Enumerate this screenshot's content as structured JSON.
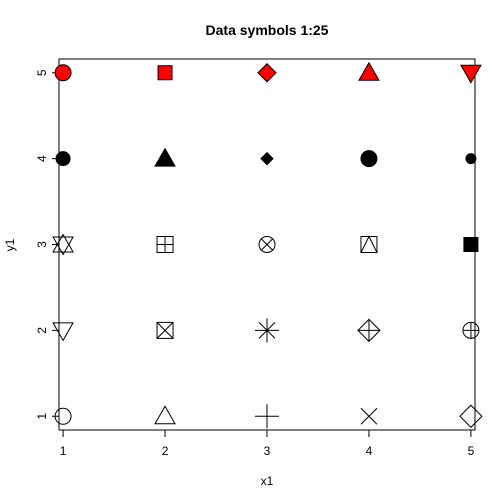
{
  "chart_data": {
    "type": "scatter",
    "title": "Data symbols 1:25",
    "xlabel": "x1",
    "ylabel": "y1",
    "xlim": [
      0.96,
      5.04
    ],
    "ylim": [
      0.84,
      5.16
    ],
    "x_ticks": [
      1,
      2,
      3,
      4,
      5
    ],
    "y_ticks": [
      1,
      2,
      3,
      4,
      5
    ],
    "grid": false,
    "legend": "none",
    "fill_color": "#ff0000",
    "points": [
      {
        "pch": 1,
        "x": 1,
        "y": 1
      },
      {
        "pch": 2,
        "x": 2,
        "y": 1
      },
      {
        "pch": 3,
        "x": 3,
        "y": 1
      },
      {
        "pch": 4,
        "x": 4,
        "y": 1
      },
      {
        "pch": 5,
        "x": 5,
        "y": 1
      },
      {
        "pch": 6,
        "x": 1,
        "y": 2
      },
      {
        "pch": 7,
        "x": 2,
        "y": 2
      },
      {
        "pch": 8,
        "x": 3,
        "y": 2
      },
      {
        "pch": 9,
        "x": 4,
        "y": 2
      },
      {
        "pch": 10,
        "x": 5,
        "y": 2
      },
      {
        "pch": 11,
        "x": 1,
        "y": 3
      },
      {
        "pch": 12,
        "x": 2,
        "y": 3
      },
      {
        "pch": 13,
        "x": 3,
        "y": 3
      },
      {
        "pch": 14,
        "x": 4,
        "y": 3
      },
      {
        "pch": 15,
        "x": 5,
        "y": 3
      },
      {
        "pch": 16,
        "x": 1,
        "y": 4
      },
      {
        "pch": 17,
        "x": 2,
        "y": 4
      },
      {
        "pch": 18,
        "x": 3,
        "y": 4
      },
      {
        "pch": 19,
        "x": 4,
        "y": 4
      },
      {
        "pch": 20,
        "x": 5,
        "y": 4
      },
      {
        "pch": 21,
        "x": 1,
        "y": 5
      },
      {
        "pch": 22,
        "x": 2,
        "y": 5
      },
      {
        "pch": 23,
        "x": 3,
        "y": 5
      },
      {
        "pch": 24,
        "x": 4,
        "y": 5
      },
      {
        "pch": 25,
        "x": 5,
        "y": 5
      }
    ]
  }
}
